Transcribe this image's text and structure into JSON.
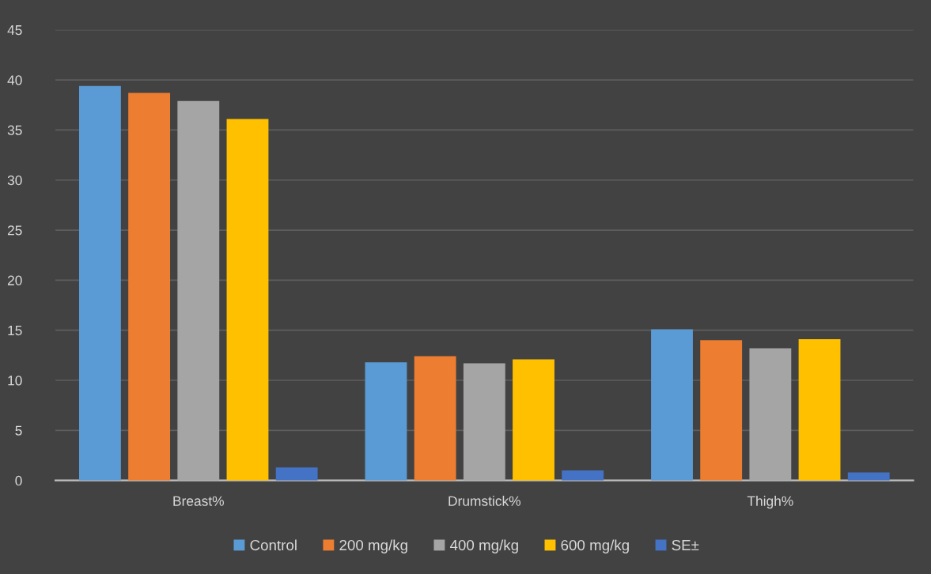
{
  "chart_data": {
    "type": "bar",
    "categories": [
      "Breast%",
      "Drumstick%",
      "Thigh%"
    ],
    "series": [
      {
        "name": "Control",
        "color": "#5b9bd5",
        "values": [
          39.4,
          11.8,
          15.1
        ]
      },
      {
        "name": "200 mg/kg",
        "color": "#ed7d31",
        "values": [
          38.7,
          12.4,
          14.0
        ]
      },
      {
        "name": "400 mg/kg",
        "color": "#a5a5a5",
        "values": [
          37.9,
          11.7,
          13.2
        ]
      },
      {
        "name": "600 mg/kg",
        "color": "#ffc000",
        "values": [
          36.1,
          12.1,
          14.1
        ]
      },
      {
        "name": "SE±",
        "color": "#4472c4",
        "values": [
          1.3,
          1.0,
          0.8
        ]
      }
    ],
    "ylim": [
      0,
      45
    ],
    "yticks": [
      0,
      5,
      10,
      15,
      20,
      25,
      30,
      35,
      40,
      45
    ],
    "grid": "y",
    "legend": "bottom"
  }
}
